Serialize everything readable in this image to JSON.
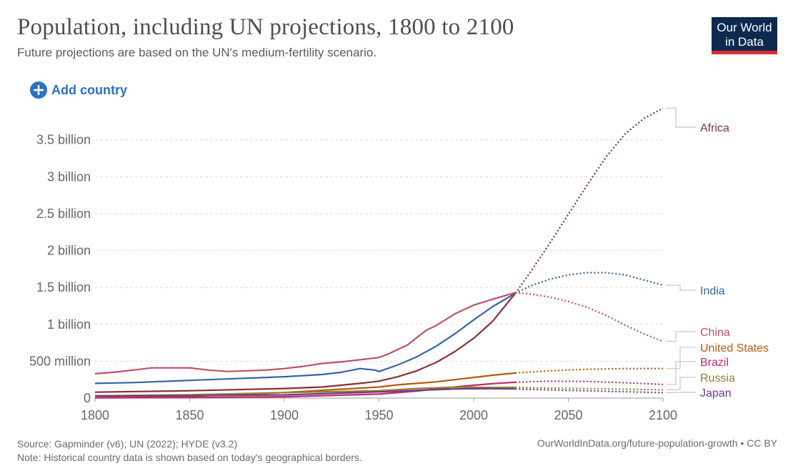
{
  "header": {
    "title": "Population, including UN projections, 1800 to 2100",
    "subtitle": "Future projections are based on the UN's medium-fertility scenario.",
    "logo_line1": "Our World",
    "logo_line2": "in Data"
  },
  "controls": {
    "add_country_label": "Add country",
    "add_icon": "plus-circle-icon"
  },
  "footer": {
    "source": "Source: Gapminder (v6); UN (2022); HYDE (v3.2)",
    "note": "Note: Historical country data is shown based on today's geographical borders.",
    "url": "OurWorldInData.org/future-population-growth • CC BY"
  },
  "chart_data": {
    "type": "line",
    "title": "Population, including UN projections, 1800 to 2100",
    "xlabel": "",
    "ylabel": "",
    "xlim": [
      1800,
      2100
    ],
    "ylim": [
      0,
      3.7
    ],
    "grid": true,
    "legend_placement": "right",
    "projection_start_year": 2022,
    "x_ticks": [
      1800,
      1850,
      1900,
      1950,
      2000,
      2050,
      2100
    ],
    "y_ticks": [
      {
        "value": 0,
        "label": "0"
      },
      {
        "value": 0.5,
        "label": "500 million"
      },
      {
        "value": 1.0,
        "label": "1 billion"
      },
      {
        "value": 1.5,
        "label": "1.5 billion"
      },
      {
        "value": 2.0,
        "label": "2 billion"
      },
      {
        "value": 2.5,
        "label": "2.5 billion"
      },
      {
        "value": 3.0,
        "label": "3 billion"
      },
      {
        "value": 3.5,
        "label": "3.5 billion"
      }
    ],
    "series": [
      {
        "name": "Africa",
        "color": "#883039",
        "points": [
          [
            1800,
            0.08
          ],
          [
            1850,
            0.1
          ],
          [
            1900,
            0.13
          ],
          [
            1920,
            0.15
          ],
          [
            1940,
            0.2
          ],
          [
            1950,
            0.23
          ],
          [
            1960,
            0.29
          ],
          [
            1970,
            0.37
          ],
          [
            1980,
            0.48
          ],
          [
            1990,
            0.63
          ],
          [
            2000,
            0.81
          ],
          [
            2010,
            1.04
          ],
          [
            2022,
            1.42
          ],
          [
            2030,
            1.71
          ],
          [
            2040,
            2.09
          ],
          [
            2050,
            2.49
          ],
          [
            2060,
            2.89
          ],
          [
            2070,
            3.27
          ],
          [
            2080,
            3.58
          ],
          [
            2090,
            3.79
          ],
          [
            2100,
            3.93
          ]
        ]
      },
      {
        "name": "India",
        "color": "#3464a8",
        "points": [
          [
            1800,
            0.2
          ],
          [
            1820,
            0.21
          ],
          [
            1850,
            0.24
          ],
          [
            1870,
            0.26
          ],
          [
            1900,
            0.29
          ],
          [
            1920,
            0.32
          ],
          [
            1930,
            0.35
          ],
          [
            1940,
            0.4
          ],
          [
            1948,
            0.38
          ],
          [
            1950,
            0.36
          ],
          [
            1960,
            0.45
          ],
          [
            1970,
            0.56
          ],
          [
            1980,
            0.7
          ],
          [
            1990,
            0.87
          ],
          [
            2000,
            1.06
          ],
          [
            2010,
            1.24
          ],
          [
            2022,
            1.42
          ],
          [
            2030,
            1.52
          ],
          [
            2040,
            1.61
          ],
          [
            2050,
            1.67
          ],
          [
            2060,
            1.7
          ],
          [
            2070,
            1.7
          ],
          [
            2080,
            1.67
          ],
          [
            2090,
            1.6
          ],
          [
            2100,
            1.53
          ]
        ]
      },
      {
        "name": "China",
        "color": "#c15065",
        "points": [
          [
            1800,
            0.33
          ],
          [
            1810,
            0.35
          ],
          [
            1820,
            0.38
          ],
          [
            1830,
            0.41
          ],
          [
            1850,
            0.41
          ],
          [
            1860,
            0.38
          ],
          [
            1870,
            0.36
          ],
          [
            1880,
            0.37
          ],
          [
            1890,
            0.38
          ],
          [
            1900,
            0.4
          ],
          [
            1910,
            0.43
          ],
          [
            1920,
            0.47
          ],
          [
            1930,
            0.49
          ],
          [
            1940,
            0.52
          ],
          [
            1950,
            0.55
          ],
          [
            1955,
            0.6
          ],
          [
            1960,
            0.66
          ],
          [
            1965,
            0.72
          ],
          [
            1970,
            0.82
          ],
          [
            1975,
            0.92
          ],
          [
            1980,
            0.98
          ],
          [
            1990,
            1.14
          ],
          [
            2000,
            1.26
          ],
          [
            2010,
            1.34
          ],
          [
            2022,
            1.43
          ],
          [
            2030,
            1.41
          ],
          [
            2040,
            1.37
          ],
          [
            2050,
            1.31
          ],
          [
            2060,
            1.23
          ],
          [
            2070,
            1.12
          ],
          [
            2080,
            0.99
          ],
          [
            2090,
            0.87
          ],
          [
            2100,
            0.77
          ]
        ]
      },
      {
        "name": "United States",
        "color": "#b6590e",
        "points": [
          [
            1800,
            0.006
          ],
          [
            1850,
            0.023
          ],
          [
            1900,
            0.076
          ],
          [
            1950,
            0.15
          ],
          [
            1960,
            0.18
          ],
          [
            1970,
            0.2
          ],
          [
            1980,
            0.22
          ],
          [
            1990,
            0.25
          ],
          [
            2000,
            0.28
          ],
          [
            2010,
            0.31
          ],
          [
            2022,
            0.34
          ],
          [
            2040,
            0.37
          ],
          [
            2060,
            0.39
          ],
          [
            2080,
            0.4
          ],
          [
            2100,
            0.4
          ]
        ]
      },
      {
        "name": "Brazil",
        "color": "#c0286b",
        "points": [
          [
            1800,
            0.003
          ],
          [
            1850,
            0.007
          ],
          [
            1900,
            0.018
          ],
          [
            1950,
            0.054
          ],
          [
            1970,
            0.096
          ],
          [
            1990,
            0.15
          ],
          [
            2000,
            0.174
          ],
          [
            2010,
            0.196
          ],
          [
            2022,
            0.215
          ],
          [
            2040,
            0.23
          ],
          [
            2060,
            0.226
          ],
          [
            2080,
            0.208
          ],
          [
            2100,
            0.185
          ]
        ]
      },
      {
        "name": "Russia",
        "color": "#9a7b2c",
        "points": [
          [
            1800,
            0.03
          ],
          [
            1850,
            0.045
          ],
          [
            1900,
            0.075
          ],
          [
            1950,
            0.1
          ],
          [
            1970,
            0.13
          ],
          [
            1990,
            0.148
          ],
          [
            2000,
            0.146
          ],
          [
            2010,
            0.143
          ],
          [
            2022,
            0.145
          ],
          [
            2050,
            0.133
          ],
          [
            2100,
            0.112
          ]
        ]
      },
      {
        "name": "Japan",
        "color": "#6b3d8e",
        "points": [
          [
            1800,
            0.03
          ],
          [
            1850,
            0.032
          ],
          [
            1900,
            0.044
          ],
          [
            1950,
            0.084
          ],
          [
            1970,
            0.105
          ],
          [
            1990,
            0.124
          ],
          [
            2000,
            0.127
          ],
          [
            2010,
            0.128
          ],
          [
            2022,
            0.124
          ],
          [
            2050,
            0.105
          ],
          [
            2100,
            0.074
          ]
        ]
      }
    ]
  }
}
